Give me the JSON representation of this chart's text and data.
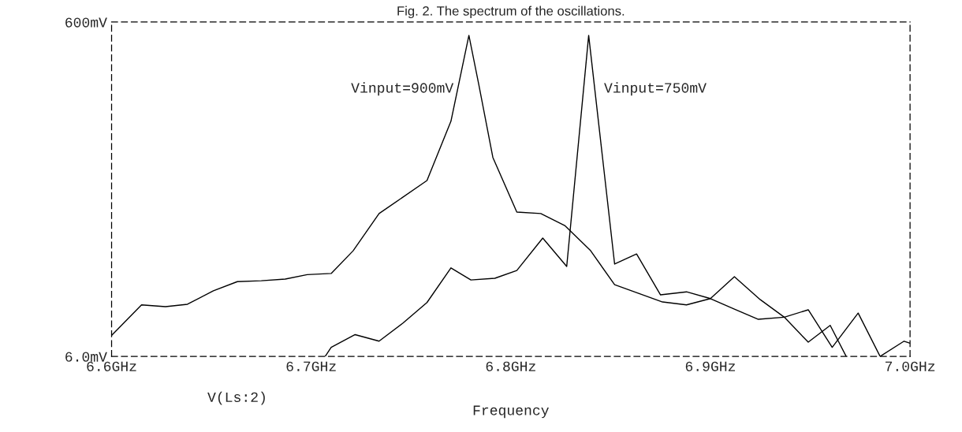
{
  "chart_data": {
    "type": "line",
    "title": "Fig. 2. The spectrum of the oscillations.",
    "xlabel": "Frequency",
    "annotations": [
      "V(Ls:2)"
    ],
    "log": "y",
    "grid": false,
    "legend": false,
    "marker": "none",
    "line_style": "solid",
    "xlim": [
      6.6,
      7.0
    ],
    "ylim": [
      6,
      600
    ],
    "xticks": [
      {
        "value": 6.6,
        "label": "6.6GHz"
      },
      {
        "value": 6.7,
        "label": "6.7GHz"
      },
      {
        "value": 6.8,
        "label": "6.8GHz"
      },
      {
        "value": 6.9,
        "label": "6.9GHz"
      },
      {
        "value": 7.0,
        "label": "7.0GHz"
      }
    ],
    "yticks": [
      {
        "value": 6,
        "label": "6.0mV"
      },
      {
        "value": 600,
        "label": "600mV"
      }
    ],
    "series": [
      {
        "name": "Vinput=900mV",
        "color": "#000000",
        "x": [
          6.6,
          6.615,
          6.627,
          6.638,
          6.651,
          6.663,
          6.675,
          6.687,
          6.698,
          6.71,
          6.721,
          6.734,
          6.758,
          6.77,
          6.779,
          6.784,
          6.791,
          6.803,
          6.815,
          6.827,
          6.84,
          6.852,
          6.864,
          6.876,
          6.888,
          6.9,
          6.912,
          6.924,
          6.937,
          6.949,
          6.961,
          6.974,
          6.985,
          6.997,
          7.0
        ],
        "values": [
          8.0,
          12.2,
          11.9,
          12.3,
          14.8,
          16.8,
          17.0,
          17.4,
          18.5,
          18.8,
          25.7,
          42.9,
          67.6,
          153,
          499,
          252,
          93,
          43.8,
          42.9,
          36.4,
          25.7,
          16.1,
          14.3,
          12.7,
          12.2,
          13.3,
          11.5,
          10.0,
          10.3,
          11.4,
          6.8,
          10.9,
          6.0,
          7.4,
          7.2
        ]
      },
      {
        "name": "Vinput=750mV",
        "color": "#000000",
        "x": [
          6.707,
          6.71,
          6.722,
          6.734,
          6.746,
          6.758,
          6.77,
          6.78,
          6.792,
          6.803,
          6.816,
          6.828,
          6.839,
          6.852,
          6.863,
          6.875,
          6.888,
          6.9,
          6.912,
          6.925,
          6.937,
          6.949,
          6.96,
          6.968
        ],
        "values": [
          6.0,
          6.8,
          8.1,
          7.4,
          9.5,
          12.6,
          20.3,
          17.2,
          17.6,
          19.6,
          30.6,
          20.7,
          499,
          21.4,
          24.6,
          14.0,
          14.6,
          13.3,
          18.0,
          13.1,
          10.3,
          7.3,
          9.2,
          6.0
        ]
      }
    ]
  }
}
